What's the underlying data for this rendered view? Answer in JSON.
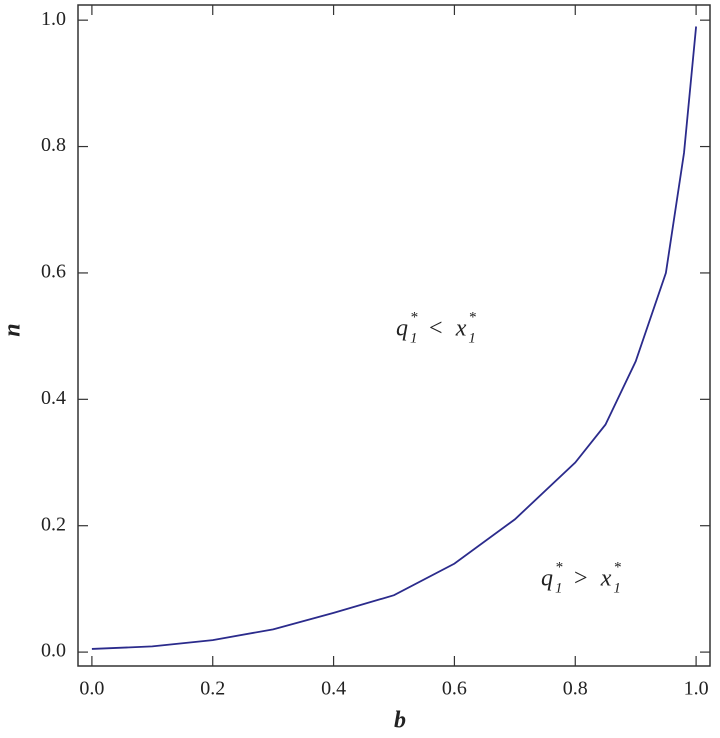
{
  "chart_data": {
    "type": "line",
    "x_label": "b",
    "y_label": "n",
    "x": [
      0,
      0.1,
      0.2,
      0.3,
      0.4,
      0.5,
      0.6,
      0.7,
      0.8,
      0.85,
      0.9,
      0.95,
      0.98,
      1.0
    ],
    "series": [
      {
        "color": "#2b2b8c",
        "values": [
          0.005,
          0.009,
          0.019,
          0.036,
          0.062,
          0.09,
          0.14,
          0.21,
          0.3,
          0.36,
          0.46,
          0.6,
          0.79,
          0.99
        ]
      }
    ],
    "xlim": [
      -0.023,
      1.023
    ],
    "ylim": [
      -0.022,
      1.024
    ],
    "xticks": [
      {
        "value": 0,
        "label": "0.0"
      },
      0.2,
      0.4,
      0.6,
      0.8,
      {
        "value": 1,
        "label": "1.0"
      }
    ],
    "yticks": [
      {
        "value": 0,
        "label": "0.0"
      },
      0.2,
      0.4,
      0.6,
      0.8,
      {
        "value": 1,
        "label": "1.0"
      }
    ],
    "annotations": [
      [
        {
          "base": "q",
          "sup": "*",
          "sub": "1"
        },
        {
          "base": "<"
        },
        {
          "base": "x",
          "sup": "*",
          "sub": "1"
        }
      ],
      [
        {
          "base": "q",
          "sup": "*",
          "sub": "1"
        },
        {
          "base": ">"
        },
        {
          "base": "x",
          "sup": "*",
          "sub": "1"
        }
      ]
    ]
  }
}
